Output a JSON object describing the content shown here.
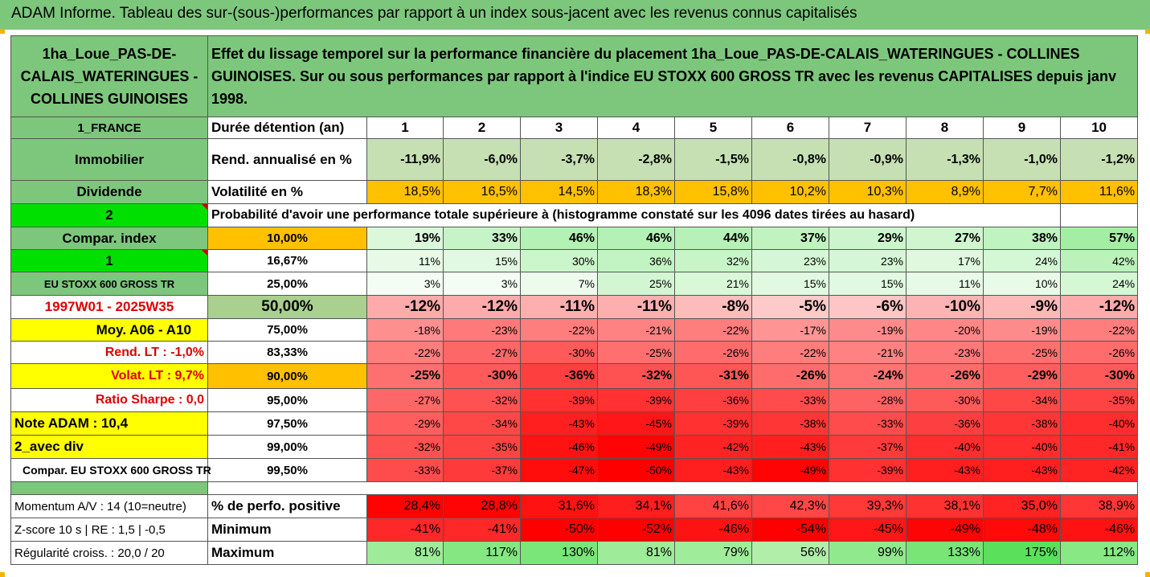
{
  "title": "ADAM Informe. Tableau des sur-(sous-)performances par rapport à un index sous-jacent avec les revenus connus capitalisés",
  "header": {
    "asset_name": "1ha_Loue_PAS-DE-CALAIS_WATERINGUES - COLLINES GUINOISES",
    "description": "Effet du lissage temporel sur la performance financière du placement 1ha_Loue_PAS-DE-CALAIS_WATERINGUES - COLLINES GUINOISES. Sur ou sous performances par rapport à l'indice EU STOXX 600 GROSS TR avec les revenus CAPITALISES depuis janv 1998."
  },
  "left_labels": {
    "country": "1_FRANCE",
    "category": "Immobilier",
    "income_type": "Dividende",
    "num_2": "2",
    "compar_index": "Compar. index",
    "num_1": "1",
    "index_name": "EU STOXX 600 GROSS TR",
    "period": "1997W01 - 2025W35",
    "moy": "Moy. A06 - A10",
    "rend_lt": "Rend. LT :   -1,0%",
    "volat_lt": "Volat. LT :   9,7%",
    "sharpe": "Ratio Sharpe :   0,0",
    "note": "Note ADAM : 10,4",
    "div": "2_avec div",
    "compar_full": "Compar. EU STOXX 600 GROSS TR",
    "momentum": "Momentum A/V : 14 (10=neutre)",
    "zscore": "Z-score 10 s  | RE : 1,5  | -0,5",
    "regularite": "Régularité croiss. : 20,0 / 20"
  },
  "row_labels": {
    "duration": "Durée détention (an)",
    "rend": "Rend. annualisé en %",
    "volat": "Volatilité en %",
    "proba": "Probabilité d'avoir une performance totale supérieure à (histogramme constaté sur les 4096 dates tirées au hasard)",
    "perf_pos": "% de perfo. positive",
    "minimum": "Minimum",
    "maximum": "Maximum"
  },
  "years": [
    "1",
    "2",
    "3",
    "4",
    "5",
    "6",
    "7",
    "8",
    "9",
    "10"
  ],
  "rend": [
    "-11,9%",
    "-6,0%",
    "-3,7%",
    "-2,8%",
    "-1,5%",
    "-0,8%",
    "-0,9%",
    "-1,3%",
    "-1,0%",
    "-1,2%"
  ],
  "volat": [
    "18,5%",
    "16,5%",
    "14,5%",
    "18,3%",
    "15,8%",
    "10,2%",
    "10,3%",
    "8,9%",
    "7,7%",
    "11,6%"
  ],
  "percentile_rows": [
    {
      "level": "10,00%",
      "values": [
        "19%",
        "33%",
        "46%",
        "46%",
        "44%",
        "37%",
        "29%",
        "27%",
        "38%",
        "57%"
      ]
    },
    {
      "level": "16,67%",
      "values": [
        "11%",
        "15%",
        "30%",
        "36%",
        "32%",
        "23%",
        "23%",
        "17%",
        "24%",
        "42%"
      ]
    },
    {
      "level": "25,00%",
      "values": [
        "3%",
        "3%",
        "7%",
        "25%",
        "21%",
        "15%",
        "15%",
        "11%",
        "10%",
        "24%"
      ]
    },
    {
      "level": "50,00%",
      "values": [
        "-12%",
        "-12%",
        "-11%",
        "-11%",
        "-8%",
        "-5%",
        "-6%",
        "-10%",
        "-9%",
        "-12%"
      ]
    },
    {
      "level": "75,00%",
      "values": [
        "-18%",
        "-23%",
        "-22%",
        "-21%",
        "-22%",
        "-17%",
        "-19%",
        "-20%",
        "-19%",
        "-22%"
      ]
    },
    {
      "level": "83,33%",
      "values": [
        "-22%",
        "-27%",
        "-30%",
        "-25%",
        "-26%",
        "-22%",
        "-21%",
        "-23%",
        "-25%",
        "-26%"
      ]
    },
    {
      "level": "90,00%",
      "values": [
        "-25%",
        "-30%",
        "-36%",
        "-32%",
        "-31%",
        "-26%",
        "-24%",
        "-26%",
        "-29%",
        "-30%"
      ]
    },
    {
      "level": "95,00%",
      "values": [
        "-27%",
        "-32%",
        "-39%",
        "-39%",
        "-36%",
        "-33%",
        "-28%",
        "-30%",
        "-34%",
        "-35%"
      ]
    },
    {
      "level": "97,50%",
      "values": [
        "-29%",
        "-34%",
        "-43%",
        "-45%",
        "-39%",
        "-38%",
        "-33%",
        "-36%",
        "-38%",
        "-40%"
      ]
    },
    {
      "level": "99,00%",
      "values": [
        "-32%",
        "-35%",
        "-46%",
        "-49%",
        "-42%",
        "-43%",
        "-37%",
        "-40%",
        "-40%",
        "-41%"
      ]
    },
    {
      "level": "99,50%",
      "values": [
        "-33%",
        "-37%",
        "-47%",
        "-50%",
        "-43%",
        "-49%",
        "-39%",
        "-43%",
        "-43%",
        "-42%"
      ]
    }
  ],
  "perf_pos": [
    "28,4%",
    "28,8%",
    "31,6%",
    "34,1%",
    "41,6%",
    "42,3%",
    "39,3%",
    "38,1%",
    "35,0%",
    "38,9%"
  ],
  "minimum": [
    "-41%",
    "-41%",
    "-50%",
    "-52%",
    "-46%",
    "-54%",
    "-45%",
    "-49%",
    "-48%",
    "-46%"
  ],
  "maximum": [
    "81%",
    "117%",
    "130%",
    "81%",
    "79%",
    "56%",
    "99%",
    "133%",
    "175%",
    "112%"
  ],
  "colors": {
    "header_green": "#7dc77d",
    "orange": "#ffc000",
    "yellow": "#ffff00",
    "bright_green": "#00e000",
    "red_text": "#e00000",
    "deep_red": "#ff0000"
  }
}
